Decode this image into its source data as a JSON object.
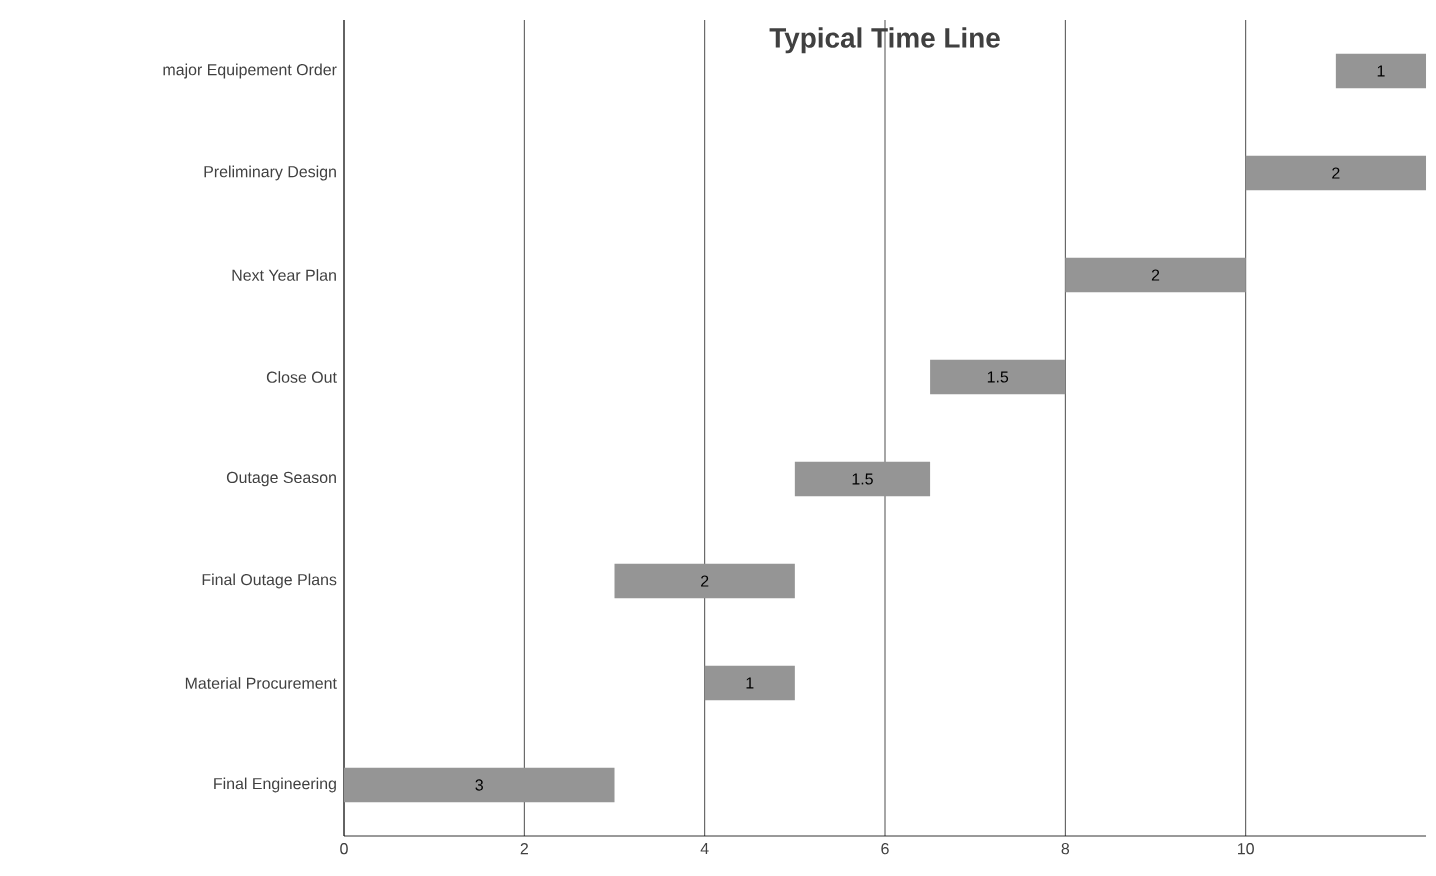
{
  "chart_data": {
    "type": "bar",
    "orientation": "horizontal",
    "title": "Typical Time Line",
    "categories": [
      "major Equipement Order",
      "Preliminary Design",
      "Next Year Plan",
      "Close Out",
      "Outage Season",
      "Final Outage Plans",
      "Material Procurement",
      "Final Engineering"
    ],
    "base": [
      11,
      10,
      8,
      6.5,
      5,
      3,
      4,
      0
    ],
    "values": [
      1,
      2,
      2,
      1.5,
      1.5,
      2,
      1,
      3
    ],
    "value_labels": [
      "1",
      "2",
      "2",
      "1.5",
      "1.5",
      "2",
      "1",
      "3"
    ],
    "color": "#959595",
    "xlim": [
      0,
      12
    ],
    "xticks": [
      0,
      2,
      4,
      6,
      8,
      10
    ],
    "grid": "x"
  }
}
